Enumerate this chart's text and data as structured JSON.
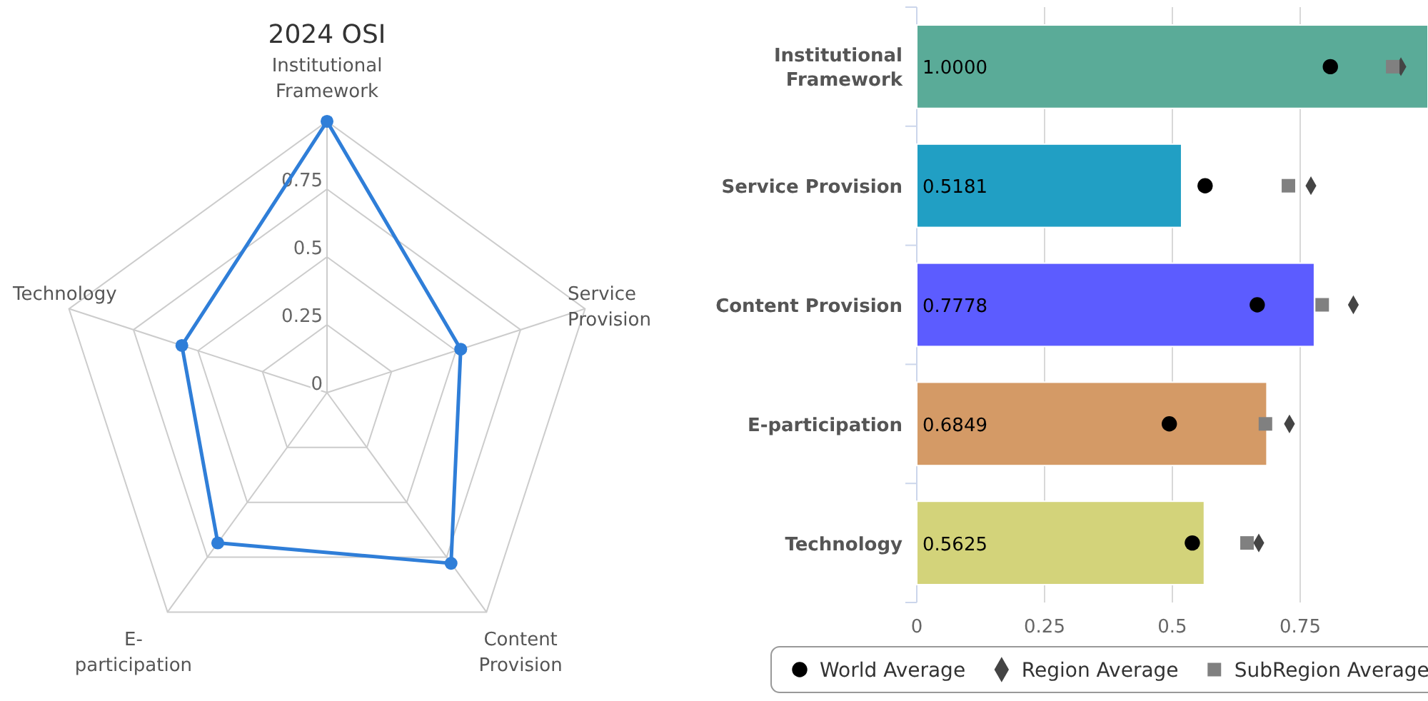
{
  "chart_data": [
    {
      "type": "radar",
      "title": "2024 OSI",
      "categories": [
        "Institutional Framework",
        "Service Provision",
        "Content Provision",
        "E-participation",
        "Technology"
      ],
      "ylim": [
        0,
        1
      ],
      "yticks": [
        0,
        0.25,
        0.5,
        0.75
      ],
      "marker": "circle",
      "legend": false,
      "series": [
        {
          "color": "#2f7ed8",
          "values": [
            1,
            0.5181,
            0.7778,
            0.6849,
            0.5625
          ]
        }
      ]
    },
    {
      "type": "bar",
      "orientation": "horizontal",
      "categories": [
        "Institutional Framework",
        "Service Provision",
        "Content Provision",
        "E-participation",
        "Technology"
      ],
      "xlim": [
        0,
        1
      ],
      "xticks": [
        0,
        0.25,
        0.5,
        0.75
      ],
      "grid": "x",
      "legend": "bottom",
      "series": [
        {
          "type": "bar",
          "colors": [
            "#5aab98",
            "#219fc4",
            "#5c5cff",
            "#d49a66",
            "#d3d37a"
          ],
          "values": [
            1,
            0.5181,
            0.7778,
            0.6849,
            0.5625
          ],
          "value_labels": [
            "1.0000",
            "0.5181",
            "0.7778",
            "0.6849",
            "0.5625"
          ]
        },
        {
          "type": "scatter",
          "name": "World Average",
          "color": "#000000",
          "marker": "circle",
          "values": [
            0.809,
            0.564,
            0.666,
            0.494,
            0.539
          ]
        },
        {
          "type": "scatter",
          "name": "Region Average",
          "color": "#444444",
          "marker": "diamond",
          "values": [
            0.947,
            0.771,
            0.854,
            0.729,
            0.669
          ]
        },
        {
          "type": "scatter",
          "name": "SubRegion Average",
          "color": "#808080",
          "marker": "square",
          "values": [
            0.931,
            0.727,
            0.793,
            0.682,
            0.646
          ]
        }
      ]
    }
  ]
}
